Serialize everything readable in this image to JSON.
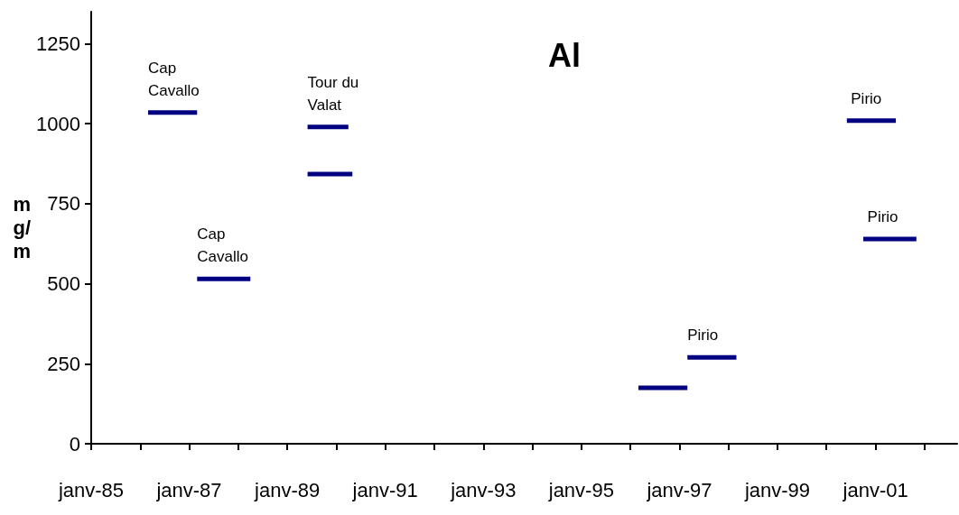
{
  "chart_data": {
    "type": "line",
    "title": "Al",
    "ylabel": "m\ng/\nm",
    "xlim": [
      "1985-01",
      "2002-09"
    ],
    "ylim": [
      0,
      1350
    ],
    "xticks": [
      {
        "value": "1985-01",
        "label": "janv-85"
      },
      {
        "value": "1986-01",
        "label": null
      },
      {
        "value": "1987-01",
        "label": "janv-87"
      },
      {
        "value": "1988-01",
        "label": null
      },
      {
        "value": "1989-01",
        "label": "janv-89"
      },
      {
        "value": "1990-01",
        "label": null
      },
      {
        "value": "1991-01",
        "label": "janv-91"
      },
      {
        "value": "1992-01",
        "label": null
      },
      {
        "value": "1993-01",
        "label": "janv-93"
      },
      {
        "value": "1994-01",
        "label": null
      },
      {
        "value": "1995-01",
        "label": "janv-95"
      },
      {
        "value": "1996-01",
        "label": null
      },
      {
        "value": "1997-01",
        "label": "janv-97"
      },
      {
        "value": "1998-01",
        "label": null
      },
      {
        "value": "1999-01",
        "label": "janv-99"
      },
      {
        "value": "2000-01",
        "label": null
      },
      {
        "value": "2001-01",
        "label": "janv-01"
      },
      {
        "value": "2002-01",
        "label": null
      }
    ],
    "yticks": [
      0,
      250,
      500,
      750,
      1000,
      1250
    ],
    "grid": false,
    "marker": "none",
    "line_style": "solid",
    "series": [
      {
        "color": "#000080",
        "x": [
          "1986-03",
          "1987-03"
        ],
        "values": [
          1035,
          1035
        ]
      },
      {
        "color": "#000080",
        "x": [
          "1987-03",
          "1988-04"
        ],
        "values": [
          515,
          515
        ]
      },
      {
        "color": "#000080",
        "x": [
          "1989-06",
          "1990-04"
        ],
        "values": [
          990,
          990
        ]
      },
      {
        "color": "#000080",
        "x": [
          "1989-06",
          "1990-05"
        ],
        "values": [
          843,
          843
        ]
      },
      {
        "color": "#000080",
        "x": [
          "1996-03",
          "1997-03"
        ],
        "values": [
          175,
          175
        ]
      },
      {
        "color": "#000080",
        "x": [
          "1997-03",
          "1998-03"
        ],
        "values": [
          270,
          270
        ]
      },
      {
        "color": "#000080",
        "x": [
          "2000-06",
          "2001-06"
        ],
        "values": [
          1010,
          1010
        ]
      },
      {
        "color": "#000080",
        "x": [
          "2000-10",
          "2001-11"
        ],
        "values": [
          640,
          640
        ]
      }
    ],
    "annotations": [
      {
        "text": "Cap\nCavallo",
        "x": "1986-03",
        "y": 1035
      },
      {
        "text": "Cap\nCavallo",
        "x": "1987-03",
        "y": 515
      },
      {
        "text": "Tour du\nValat",
        "x": "1989-06",
        "y": 990
      },
      {
        "text": "Pirio",
        "x": "1997-03",
        "y": 270
      },
      {
        "text": "Pirio",
        "x": "2000-07",
        "y": 1010
      },
      {
        "text": "Pirio",
        "x": "2000-11",
        "y": 640
      }
    ]
  }
}
